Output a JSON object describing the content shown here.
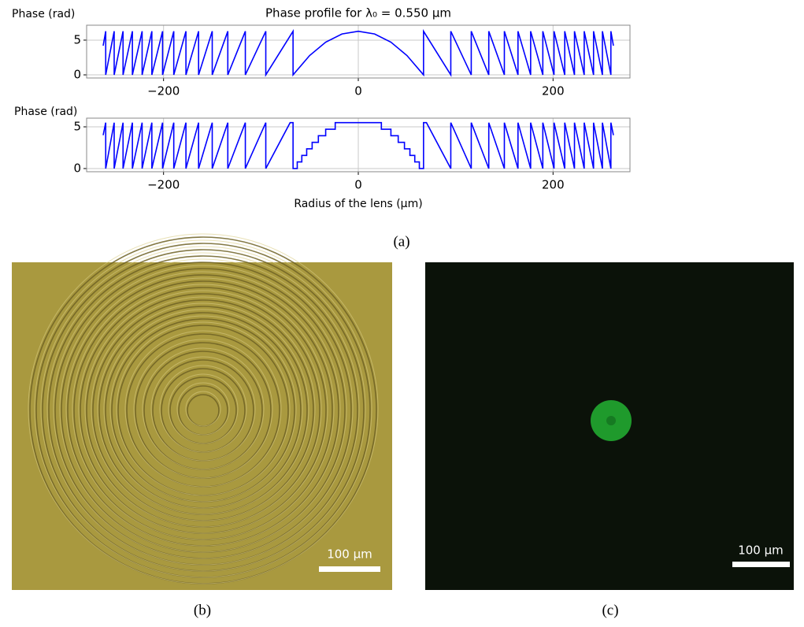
{
  "chart_data": [
    {
      "type": "line",
      "title": "Phase profile for λ₀ = 0.550 μm",
      "y_label": "Phase (rad)",
      "color": "#0000ff",
      "grid": true,
      "xlim": [
        -279,
        279
      ],
      "ylim": [
        -0.45,
        7.15
      ],
      "xticks": [
        {
          "value": -200,
          "label": "−200"
        },
        0,
        200
      ],
      "yticks": [
        0,
        5
      ],
      "x": [
        -262,
        -259.4,
        -259.4,
        -250.7,
        -250.7,
        -241.6,
        -241.6,
        -232,
        -232,
        -222,
        -222,
        -212,
        -212,
        -201,
        -201,
        -189.5,
        -189.5,
        -177,
        -177,
        -164,
        -164,
        -150,
        -150,
        -134,
        -134,
        -116,
        -116,
        -95,
        -95,
        -67,
        -67,
        -50,
        -33.5,
        -16.75,
        0,
        16.75,
        33.5,
        50,
        67,
        67,
        95,
        95,
        116,
        116,
        134,
        134,
        150,
        150,
        164,
        164,
        177,
        177,
        189.5,
        189.5,
        201,
        201,
        212,
        212,
        222,
        222,
        232,
        232,
        241.6,
        241.6,
        250.7,
        250.7,
        259.4,
        259.4,
        262
      ],
      "values": [
        4.2,
        6.28,
        0,
        6.28,
        0,
        6.28,
        0,
        6.28,
        0,
        6.28,
        0,
        6.28,
        0,
        6.28,
        0,
        6.28,
        0,
        6.28,
        0,
        6.28,
        0,
        6.28,
        0,
        6.28,
        0,
        6.28,
        0,
        6.28,
        0,
        6.28,
        0,
        2.78,
        4.71,
        5.89,
        6.28,
        5.89,
        4.71,
        2.78,
        0,
        6.28,
        0,
        6.28,
        0,
        6.28,
        0,
        6.28,
        0,
        6.28,
        0,
        6.28,
        0,
        6.28,
        0,
        6.28,
        0,
        6.28,
        0,
        6.28,
        0,
        6.28,
        0,
        6.28,
        0,
        6.28,
        0,
        6.28,
        0,
        6.28,
        4.2
      ]
    },
    {
      "type": "line",
      "y_label": "Phase (rad)",
      "x_label": "Radius of the lens (μm)",
      "color": "#0000ff",
      "grid": true,
      "xlim": [
        -279,
        279
      ],
      "ylim": [
        -0.38,
        6.04
      ],
      "xticks": [
        {
          "value": -200,
          "label": "−200"
        },
        0,
        200
      ],
      "yticks": [
        0,
        5
      ],
      "x": [
        -262,
        -259.4,
        -259.4,
        -250.7,
        -250.7,
        -241.6,
        -241.6,
        -232,
        -232,
        -222,
        -222,
        -212,
        -212,
        -201,
        -201,
        -189.5,
        -189.5,
        -177,
        -177,
        -164,
        -164,
        -150,
        -150,
        -134,
        -134,
        -116,
        -116,
        -95,
        -95,
        -70,
        -67,
        -67,
        -62.7,
        -62.7,
        -58,
        -58,
        -53,
        -53,
        -47.4,
        -47.4,
        -41,
        -41,
        -33.5,
        -33.5,
        -23.7,
        -23.7,
        23.7,
        23.7,
        33.5,
        33.5,
        41,
        41,
        47.4,
        47.4,
        53,
        53,
        58,
        58,
        62.7,
        62.7,
        67,
        67,
        70,
        95,
        95,
        116,
        116,
        134,
        134,
        150,
        150,
        164,
        164,
        177,
        177,
        189.5,
        189.5,
        201,
        201,
        212,
        212,
        222,
        222,
        232,
        232,
        241.6,
        241.6,
        250.7,
        250.7,
        259.4,
        259.4,
        262
      ],
      "values": [
        4.0,
        5.5,
        0,
        5.5,
        0,
        5.5,
        0,
        5.5,
        0,
        5.5,
        0,
        5.5,
        0,
        5.5,
        0,
        5.5,
        0,
        5.5,
        0,
        5.5,
        0,
        5.5,
        0,
        5.5,
        0,
        5.5,
        0,
        5.5,
        0,
        5.5,
        5.5,
        0,
        0,
        0.79,
        0.79,
        1.57,
        1.57,
        2.36,
        2.36,
        3.14,
        3.14,
        3.93,
        3.93,
        4.71,
        4.71,
        5.5,
        5.5,
        4.71,
        4.71,
        3.93,
        3.93,
        3.14,
        3.14,
        2.36,
        2.36,
        1.57,
        1.57,
        0.79,
        0.79,
        0,
        0,
        5.5,
        5.5,
        0,
        5.5,
        0,
        5.5,
        0,
        5.5,
        0,
        5.5,
        0,
        5.5,
        0,
        5.5,
        0,
        5.5,
        0,
        5.5,
        0,
        5.5,
        0,
        5.5,
        0,
        5.5,
        0,
        5.5,
        0,
        5.5,
        0,
        5.5,
        4.0
      ]
    }
  ],
  "panels": {
    "a": "(a)",
    "b": "(b)",
    "c": "(c)"
  },
  "scale_bars": {
    "b": "100 μm",
    "c": "100 μm"
  }
}
